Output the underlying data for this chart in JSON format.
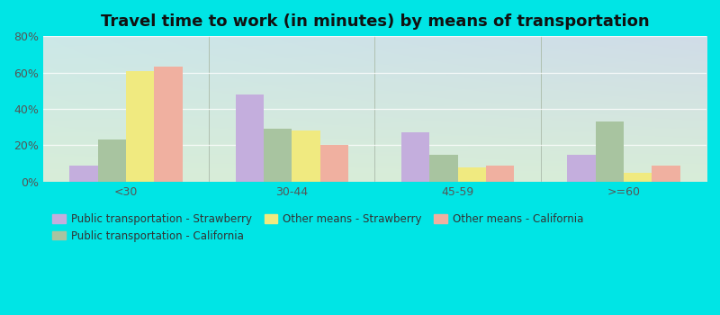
{
  "title": "Travel time to work (in minutes) by means of transportation",
  "categories": [
    "<30",
    "30-44",
    "45-59",
    ">=60"
  ],
  "series_order": [
    "Public transportation - Strawberry",
    "Public transportation - California",
    "Other means - Strawberry",
    "Other means - California"
  ],
  "series": {
    "Public transportation - Strawberry": [
      9,
      48,
      27,
      15
    ],
    "Public transportation - California": [
      23,
      29,
      15,
      33
    ],
    "Other means - Strawberry": [
      61,
      28,
      8,
      5
    ],
    "Other means - California": [
      63,
      20,
      9,
      9
    ]
  },
  "colors": {
    "Public transportation - Strawberry": "#c4aedd",
    "Public transportation - California": "#a8c4a0",
    "Other means - Strawberry": "#f0ea80",
    "Other means - California": "#f0b0a0"
  },
  "ylim": [
    0,
    80
  ],
  "yticks": [
    0,
    20,
    40,
    60,
    80
  ],
  "ytick_labels": [
    "0%",
    "20%",
    "40%",
    "60%",
    "80%"
  ],
  "background_color": "#00e5e5",
  "plot_bg_top_left": "#cce8e8",
  "plot_bg_top_right": "#d0dce8",
  "plot_bg_bottom": "#d8edd8",
  "title_fontsize": 13,
  "tick_fontsize": 9,
  "legend_fontsize": 8.5,
  "bar_width": 0.17,
  "legend_order": [
    "Public transportation - Strawberry",
    "Public transportation - California",
    "Other means - Strawberry",
    "Other means - California"
  ]
}
